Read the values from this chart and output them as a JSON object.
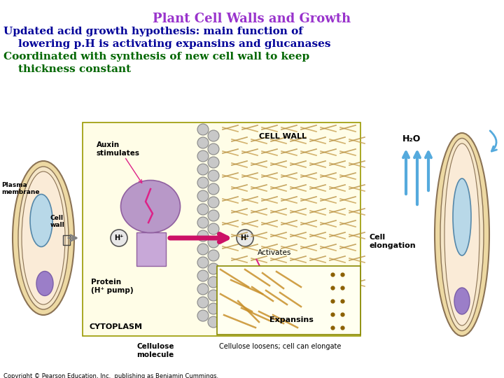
{
  "title": "Plant Cell Walls and Growth",
  "title_color": "#9933CC",
  "title_fontsize": 13,
  "line1": "Updated acid growth hypothesis: main function of",
  "line2": "    lowering p.H is activating expansins and glucanases",
  "line3": "Coordinated with synthesis of new cell wall to keep",
  "line4": "    thickness constant",
  "body_color": "#000099",
  "green_color": "#006600",
  "text_fontsize": 11,
  "copyright": "Copyright © Pearson Education, Inc.  publishing as Benjamin Cummings.",
  "copyright_fontsize": 6,
  "bg_color": "#ffffff",
  "diagram_labels": {
    "plasma_membrane": "Plasma\nmembrane",
    "cell_wall_label": "Cell\nwall",
    "auxin": "Auxin\nstimulates",
    "cell_wall": "CELL WALL",
    "cytoplasm": "CYTOPLASM",
    "protein": "Protein\n(H⁺ pump)",
    "h_plus_left": "H⁺",
    "h_plus_right": "H⁺",
    "activates": "Activates",
    "expansins": "Expansins",
    "cellulose_mol": "Cellulose\nmolecule",
    "cellulose_loosens": "Cellulose loosens; cell can elongate",
    "h2o": "H₂O",
    "cell_elongation": "Cell\nelongation"
  }
}
